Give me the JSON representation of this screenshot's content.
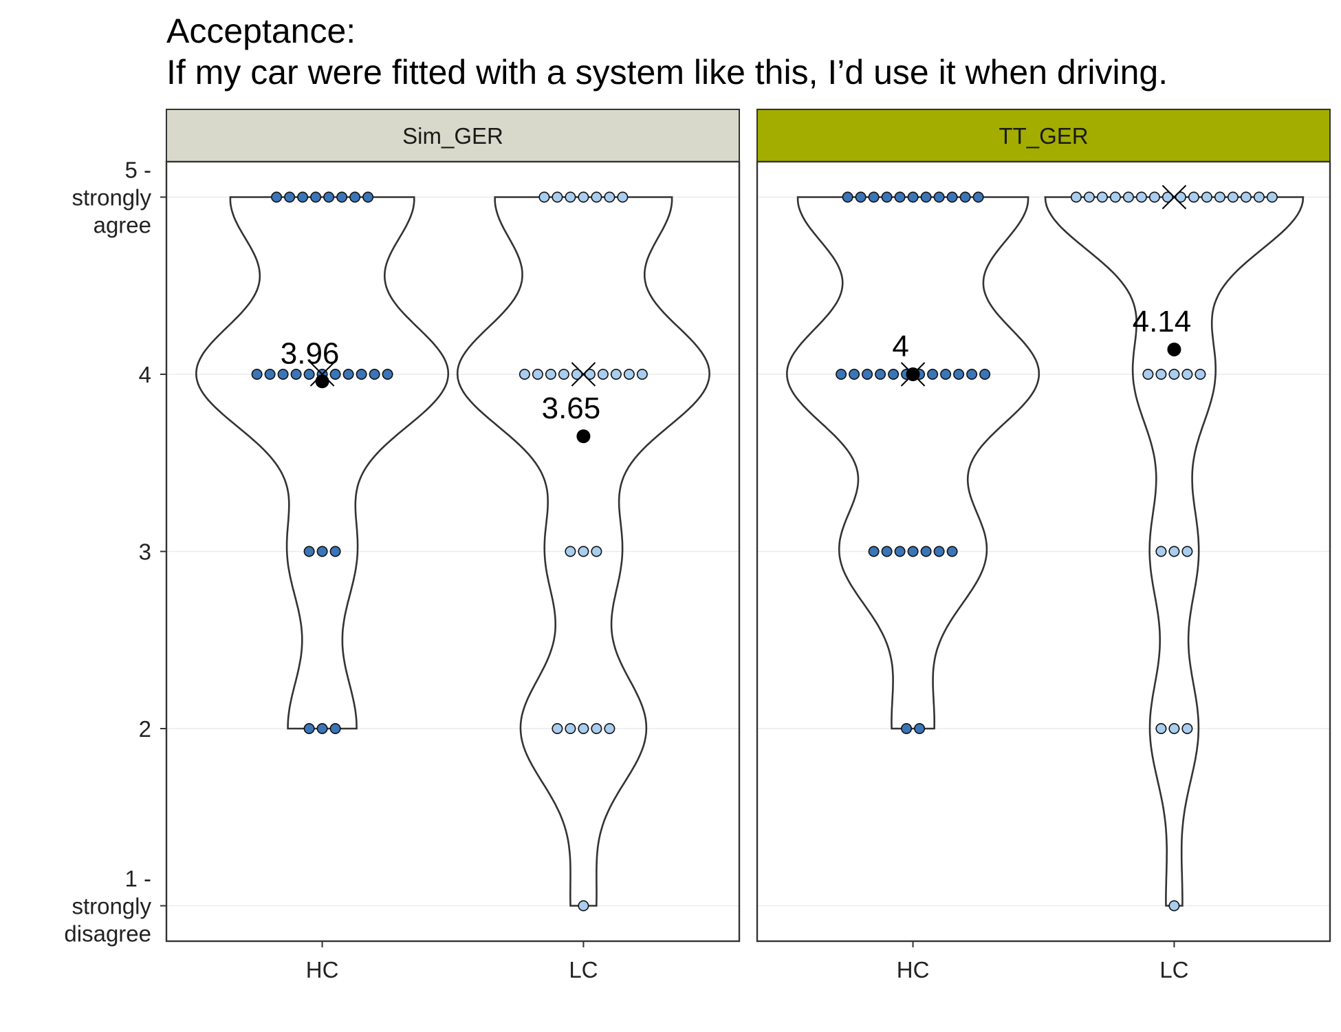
{
  "chart_data": {
    "type": "violin",
    "title": "Acceptance:",
    "subtitle": "If my car were fitted with a system like this, I’d use it when driving.",
    "ylim": [
      0.8,
      5.2
    ],
    "y_ticks": [
      {
        "value": 1,
        "lines": [
          "1 -",
          "strongly",
          "disagree"
        ]
      },
      {
        "value": 2,
        "lines": [
          "2"
        ]
      },
      {
        "value": 3,
        "lines": [
          "3"
        ]
      },
      {
        "value": 4,
        "lines": [
          "4"
        ]
      },
      {
        "value": 5,
        "lines": [
          "5 -",
          "strongly",
          "agree"
        ]
      }
    ],
    "grid": "horizontal",
    "categories": [
      "HC",
      "LC"
    ],
    "colors": {
      "HC": "#3a75b8",
      "LC": "#a9cdef",
      "strip_Sim_GER": "#d9d9cb",
      "strip_TT_GER": "#a2ad00"
    },
    "panels": [
      {
        "name": "Sim_GER",
        "groups": [
          {
            "category": "HC",
            "counts": {
              "1": 0,
              "2": 3,
              "3": 3,
              "4": 11,
              "5": 8
            },
            "mean": 3.96,
            "mean_label": "3.96",
            "median": 4
          },
          {
            "category": "LC",
            "counts": {
              "1": 1,
              "2": 5,
              "3": 3,
              "4": 10,
              "5": 7
            },
            "mean": 3.65,
            "mean_label": "3.65",
            "median": 4
          }
        ]
      },
      {
        "name": "TT_GER",
        "groups": [
          {
            "category": "HC",
            "counts": {
              "1": 0,
              "2": 2,
              "3": 7,
              "4": 12,
              "5": 11
            },
            "mean": 4,
            "mean_label": "4",
            "median": 4
          },
          {
            "category": "LC",
            "counts": {
              "1": 1,
              "2": 3,
              "3": 3,
              "4": 5,
              "5": 16
            },
            "mean": 4.14,
            "mean_label": "4.14",
            "median": 5
          }
        ]
      }
    ]
  }
}
